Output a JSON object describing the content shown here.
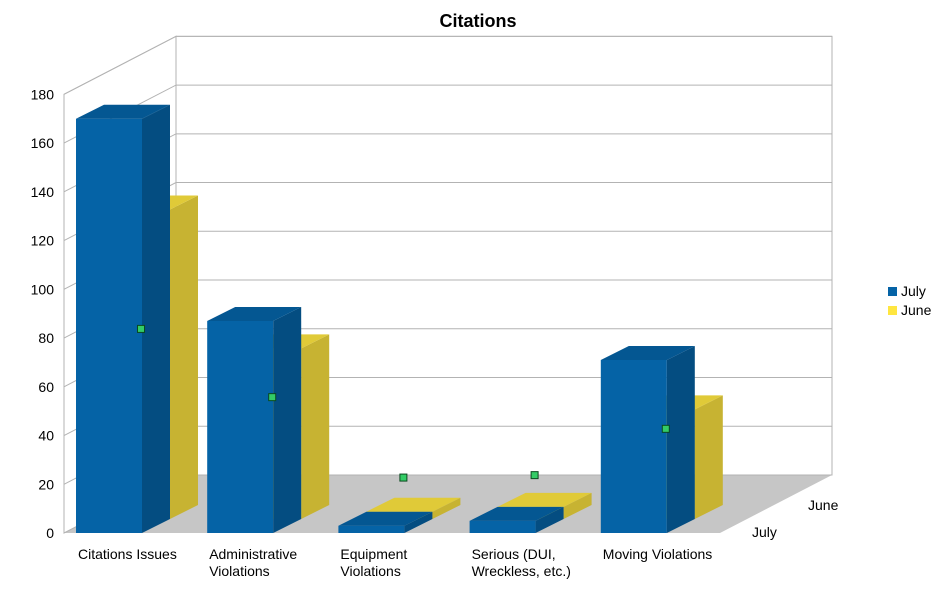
{
  "chart_data": {
    "type": "bar",
    "title": "Citations",
    "categories": [
      "Citations Issues",
      "Administrative Violations",
      "Equipment Violations",
      "Serious (DUI, Wreckless, etc.)",
      "Moving Violations"
    ],
    "category_lines": [
      [
        "Citations Issues"
      ],
      [
        "Administrative",
        "Violations"
      ],
      [
        "Equipment",
        "Violations"
      ],
      [
        "Serious (DUI,",
        "Wreckless, etc.)"
      ],
      [
        "Moving Violations"
      ]
    ],
    "series": [
      {
        "name": "July",
        "values": [
          170,
          87,
          3,
          5,
          71
        ],
        "color": "#0563a6"
      },
      {
        "name": "June",
        "values": [
          127,
          70,
          3,
          5,
          45
        ],
        "color": "#ffe640"
      }
    ],
    "series_markers": [
      {
        "series": "June",
        "values": [
          78,
          50,
          17,
          18,
          37
        ],
        "color": "#33cc66"
      }
    ],
    "depth_labels": [
      "June",
      "July"
    ],
    "yticks": [
      0,
      20,
      40,
      60,
      80,
      100,
      120,
      140,
      160,
      180
    ],
    "ylim": [
      0,
      180
    ],
    "grid": true,
    "legend_position": "right"
  }
}
